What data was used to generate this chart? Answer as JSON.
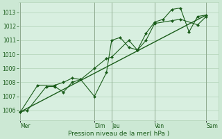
{
  "bg_color": "#cce8d4",
  "plot_bg_color": "#d8efe0",
  "grid_color": "#b8d8be",
  "line_color": "#1a5c1a",
  "marker_color": "#1a5c1a",
  "ylabel_values": [
    1006,
    1007,
    1008,
    1009,
    1010,
    1011,
    1012,
    1013
  ],
  "ylim": [
    1005.3,
    1013.7
  ],
  "xlabel": "Pression niveau de la mer( hPa )",
  "x_day_labels": [
    "Mer",
    "Dim",
    "Jeu",
    "Ven",
    "Sam"
  ],
  "x_day_positions": [
    0.0,
    4.3,
    5.3,
    7.8,
    10.8
  ],
  "xlim": [
    -0.1,
    11.5
  ],
  "series1_x": [
    0.0,
    0.4,
    1.5,
    2.0,
    2.5,
    3.0,
    3.5,
    4.3,
    5.0,
    5.3,
    5.8,
    6.3,
    6.8,
    7.3,
    7.8,
    8.3,
    8.8,
    9.3,
    9.8,
    10.3,
    10.8
  ],
  "series1_y": [
    1005.9,
    1006.0,
    1007.7,
    1007.7,
    1007.3,
    1008.0,
    1008.2,
    1007.0,
    1008.7,
    1011.0,
    1011.2,
    1010.5,
    1010.3,
    1011.5,
    1012.3,
    1012.5,
    1013.2,
    1013.3,
    1011.6,
    1012.7,
    1012.8
  ],
  "series2_x": [
    0.0,
    1.0,
    2.0,
    2.5,
    3.0,
    3.5,
    4.3,
    5.0,
    5.3,
    6.3,
    6.8,
    7.3,
    7.8,
    8.8,
    9.3,
    10.3,
    10.8
  ],
  "series2_y": [
    1005.9,
    1007.8,
    1007.8,
    1008.0,
    1008.3,
    1008.2,
    1009.0,
    1009.7,
    1009.8,
    1011.0,
    1010.3,
    1011.0,
    1012.2,
    1012.4,
    1012.5,
    1012.1,
    1012.7
  ],
  "trend_x": [
    0.0,
    10.8
  ],
  "trend_y": [
    1005.9,
    1012.8
  ],
  "label_fontsize": 5.5,
  "tick_fontsize": 5.5,
  "xlabel_fontsize": 6.5
}
